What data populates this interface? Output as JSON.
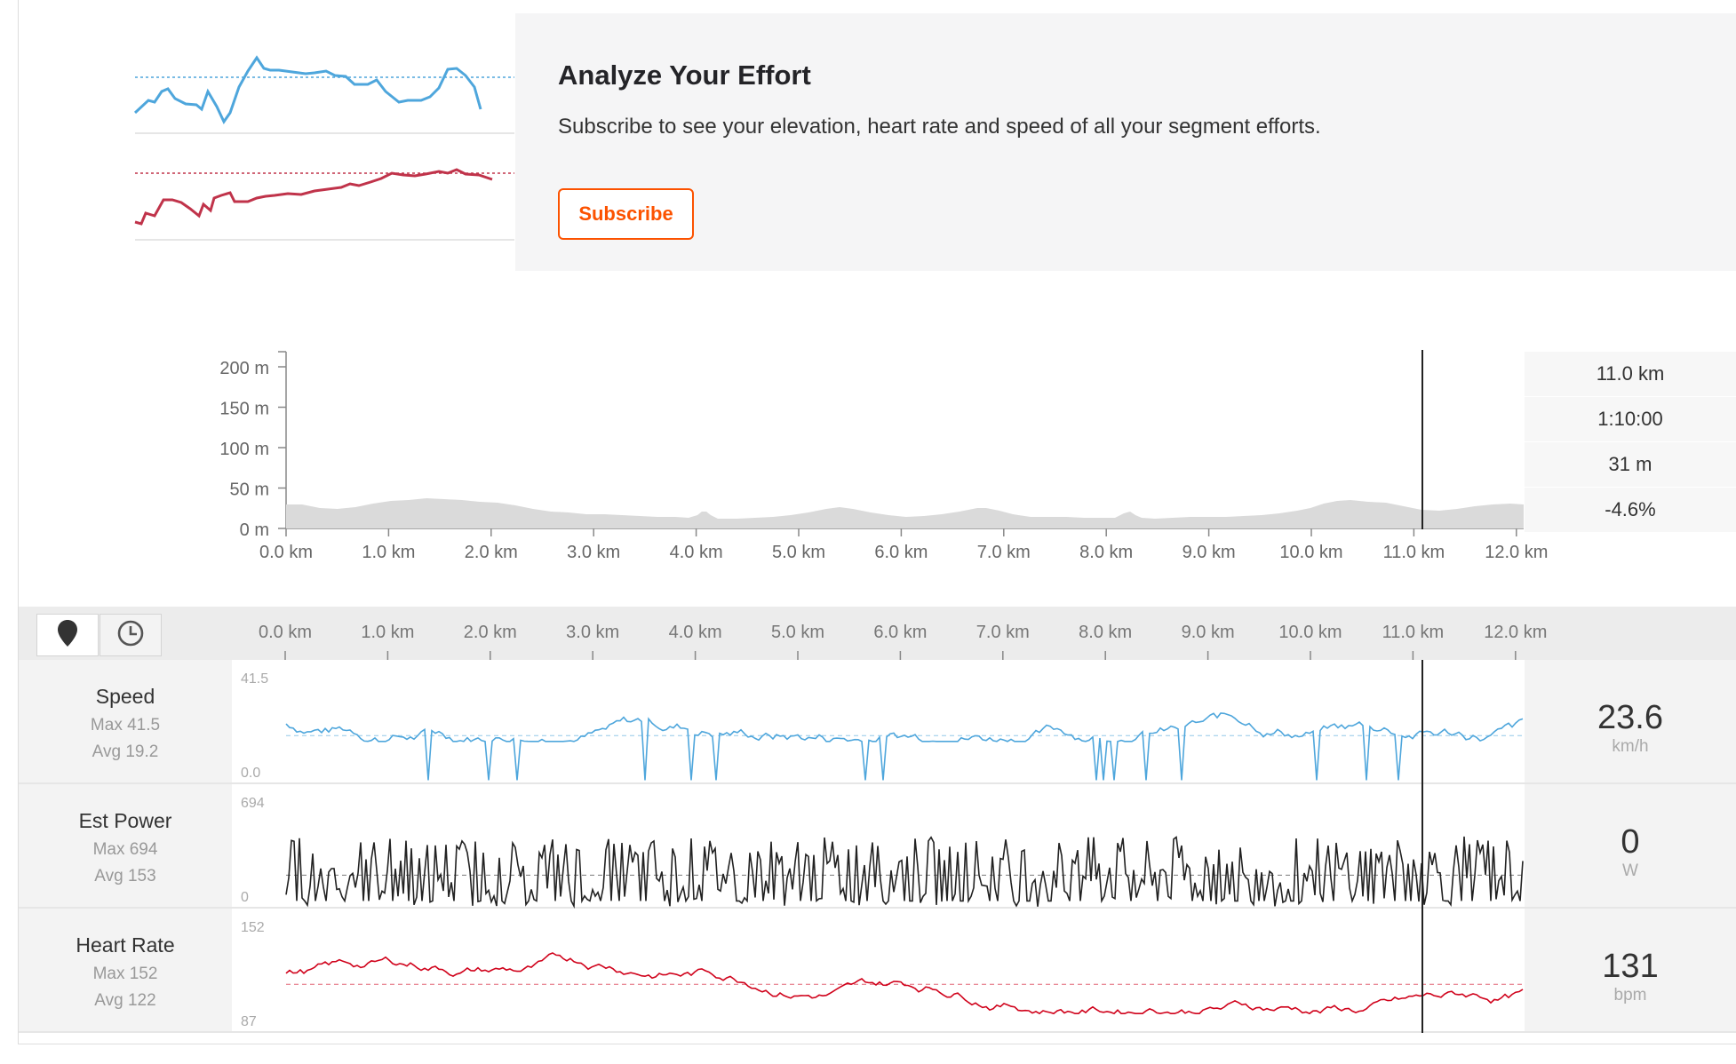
{
  "upsell": {
    "title": "Analyze Your Effort",
    "text": "Subscribe to see your elevation, heart rate and speed of all your segment efforts.",
    "subscribe_label": "Subscribe"
  },
  "elevation": {
    "y_ticks": [
      "200 m",
      "150 m",
      "100 m",
      "50 m",
      "0 m"
    ],
    "x_ticks": [
      "0.0 km",
      "1.0 km",
      "2.0 km",
      "3.0 km",
      "4.0 km",
      "5.0 km",
      "6.0 km",
      "7.0 km",
      "8.0 km",
      "9.0 km",
      "10.0 km",
      "11.0 km",
      "12.0 km"
    ],
    "cursor_km": 11.0,
    "stats": [
      "11.0 km",
      "1:10:00",
      "31 m",
      "-4.6%"
    ]
  },
  "streams": {
    "x_ticks": [
      "0.0 km",
      "1.0 km",
      "2.0 km",
      "3.0 km",
      "4.0 km",
      "5.0 km",
      "6.0 km",
      "7.0 km",
      "8.0 km",
      "9.0 km",
      "10.0 km",
      "11.0 km",
      "12.0 km"
    ],
    "rows": [
      {
        "name": "Speed",
        "max": "Max 41.5",
        "avg": "Avg 19.2",
        "ymax": "41.5",
        "ymin": "0.0",
        "value": "23.6",
        "unit": "km/h",
        "color": "#4ea6dc"
      },
      {
        "name": "Est Power",
        "max": "Max 694",
        "avg": "Avg 153",
        "ymax": "694",
        "ymin": "0",
        "value": "0",
        "unit": "W",
        "color": "#222222"
      },
      {
        "name": "Heart Rate",
        "max": "Max 152",
        "avg": "Avg 122",
        "ymax": "152",
        "ymin": "87",
        "value": "131",
        "unit": "bpm",
        "color": "#d0021b"
      }
    ]
  },
  "icons": {
    "map": "map-pin-icon",
    "time": "clock-icon"
  }
}
